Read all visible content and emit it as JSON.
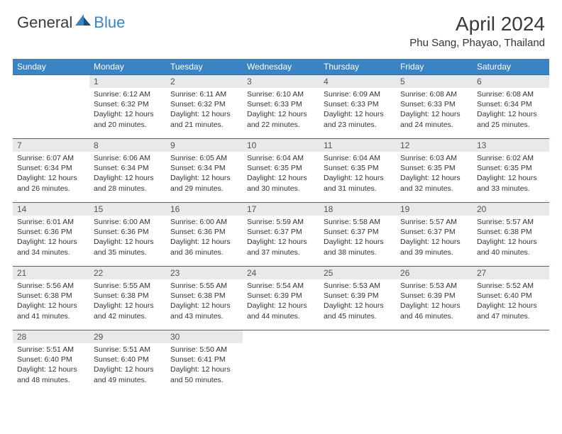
{
  "brand": {
    "general": "General",
    "blue": "Blue"
  },
  "title": "April 2024",
  "location": "Phu Sang, Phayao, Thailand",
  "colors": {
    "header_bg": "#3a84c4",
    "header_text": "#ffffff",
    "daynum_bg": "#e9e9e9",
    "daynum_text": "#555555",
    "body_text": "#333333",
    "rule": "#2f6fa8",
    "logo_blue": "#3a84c4",
    "logo_dark": "#1f4d7a"
  },
  "weekdays": [
    "Sunday",
    "Monday",
    "Tuesday",
    "Wednesday",
    "Thursday",
    "Friday",
    "Saturday"
  ],
  "start_offset": 1,
  "days": [
    {
      "n": 1,
      "sr": "6:12 AM",
      "ss": "6:32 PM",
      "dl": "12 hours and 20 minutes."
    },
    {
      "n": 2,
      "sr": "6:11 AM",
      "ss": "6:32 PM",
      "dl": "12 hours and 21 minutes."
    },
    {
      "n": 3,
      "sr": "6:10 AM",
      "ss": "6:33 PM",
      "dl": "12 hours and 22 minutes."
    },
    {
      "n": 4,
      "sr": "6:09 AM",
      "ss": "6:33 PM",
      "dl": "12 hours and 23 minutes."
    },
    {
      "n": 5,
      "sr": "6:08 AM",
      "ss": "6:33 PM",
      "dl": "12 hours and 24 minutes."
    },
    {
      "n": 6,
      "sr": "6:08 AM",
      "ss": "6:34 PM",
      "dl": "12 hours and 25 minutes."
    },
    {
      "n": 7,
      "sr": "6:07 AM",
      "ss": "6:34 PM",
      "dl": "12 hours and 26 minutes."
    },
    {
      "n": 8,
      "sr": "6:06 AM",
      "ss": "6:34 PM",
      "dl": "12 hours and 28 minutes."
    },
    {
      "n": 9,
      "sr": "6:05 AM",
      "ss": "6:34 PM",
      "dl": "12 hours and 29 minutes."
    },
    {
      "n": 10,
      "sr": "6:04 AM",
      "ss": "6:35 PM",
      "dl": "12 hours and 30 minutes."
    },
    {
      "n": 11,
      "sr": "6:04 AM",
      "ss": "6:35 PM",
      "dl": "12 hours and 31 minutes."
    },
    {
      "n": 12,
      "sr": "6:03 AM",
      "ss": "6:35 PM",
      "dl": "12 hours and 32 minutes."
    },
    {
      "n": 13,
      "sr": "6:02 AM",
      "ss": "6:35 PM",
      "dl": "12 hours and 33 minutes."
    },
    {
      "n": 14,
      "sr": "6:01 AM",
      "ss": "6:36 PM",
      "dl": "12 hours and 34 minutes."
    },
    {
      "n": 15,
      "sr": "6:00 AM",
      "ss": "6:36 PM",
      "dl": "12 hours and 35 minutes."
    },
    {
      "n": 16,
      "sr": "6:00 AM",
      "ss": "6:36 PM",
      "dl": "12 hours and 36 minutes."
    },
    {
      "n": 17,
      "sr": "5:59 AM",
      "ss": "6:37 PM",
      "dl": "12 hours and 37 minutes."
    },
    {
      "n": 18,
      "sr": "5:58 AM",
      "ss": "6:37 PM",
      "dl": "12 hours and 38 minutes."
    },
    {
      "n": 19,
      "sr": "5:57 AM",
      "ss": "6:37 PM",
      "dl": "12 hours and 39 minutes."
    },
    {
      "n": 20,
      "sr": "5:57 AM",
      "ss": "6:38 PM",
      "dl": "12 hours and 40 minutes."
    },
    {
      "n": 21,
      "sr": "5:56 AM",
      "ss": "6:38 PM",
      "dl": "12 hours and 41 minutes."
    },
    {
      "n": 22,
      "sr": "5:55 AM",
      "ss": "6:38 PM",
      "dl": "12 hours and 42 minutes."
    },
    {
      "n": 23,
      "sr": "5:55 AM",
      "ss": "6:38 PM",
      "dl": "12 hours and 43 minutes."
    },
    {
      "n": 24,
      "sr": "5:54 AM",
      "ss": "6:39 PM",
      "dl": "12 hours and 44 minutes."
    },
    {
      "n": 25,
      "sr": "5:53 AM",
      "ss": "6:39 PM",
      "dl": "12 hours and 45 minutes."
    },
    {
      "n": 26,
      "sr": "5:53 AM",
      "ss": "6:39 PM",
      "dl": "12 hours and 46 minutes."
    },
    {
      "n": 27,
      "sr": "5:52 AM",
      "ss": "6:40 PM",
      "dl": "12 hours and 47 minutes."
    },
    {
      "n": 28,
      "sr": "5:51 AM",
      "ss": "6:40 PM",
      "dl": "12 hours and 48 minutes."
    },
    {
      "n": 29,
      "sr": "5:51 AM",
      "ss": "6:40 PM",
      "dl": "12 hours and 49 minutes."
    },
    {
      "n": 30,
      "sr": "5:50 AM",
      "ss": "6:41 PM",
      "dl": "12 hours and 50 minutes."
    }
  ],
  "labels": {
    "sunrise": "Sunrise:",
    "sunset": "Sunset:",
    "daylight": "Daylight:"
  }
}
